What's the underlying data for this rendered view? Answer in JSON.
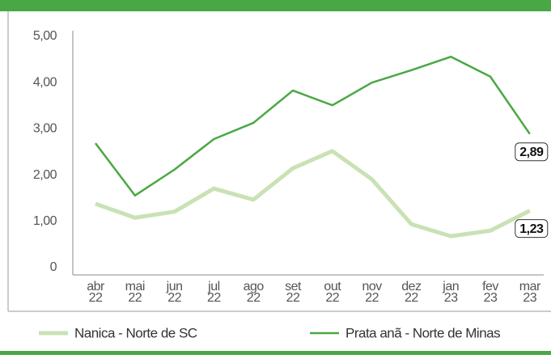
{
  "chart_data": {
    "type": "line",
    "categories": [
      "abr 22",
      "mai 22",
      "jun 22",
      "jul 22",
      "ago 22",
      "set 22",
      "out 22",
      "nov 22",
      "dez 22",
      "jan 23",
      "fev 23",
      "mar 23"
    ],
    "series": [
      {
        "name": "Nanica - Norte de SC",
        "color": "#c9e2b5",
        "width": 5,
        "values": [
          1.38,
          1.08,
          1.21,
          1.71,
          1.47,
          2.15,
          2.52,
          1.91,
          0.94,
          0.68,
          0.8,
          1.23
        ],
        "value_labels": [
          null,
          null,
          null,
          null,
          null,
          null,
          null,
          null,
          null,
          null,
          null,
          "1,23"
        ]
      },
      {
        "name": "Prata anã - Norte de Minas",
        "color": "#4aa844",
        "width": 2.5,
        "values": [
          2.69,
          1.56,
          2.12,
          2.78,
          3.13,
          3.83,
          3.51,
          4.0,
          4.27,
          4.56,
          4.13,
          2.89
        ],
        "value_labels": [
          null,
          null,
          null,
          null,
          null,
          null,
          null,
          null,
          null,
          null,
          null,
          "2,89"
        ]
      }
    ],
    "ylim": [
      0,
      5.2
    ],
    "yticks": [
      0,
      {
        "value": 1,
        "label": "1,00"
      },
      {
        "value": 2,
        "label": "2,00"
      },
      {
        "value": 3,
        "label": "3,00"
      },
      {
        "value": 4,
        "label": "4,00"
      },
      {
        "value": 5,
        "label": "5,00"
      }
    ]
  }
}
